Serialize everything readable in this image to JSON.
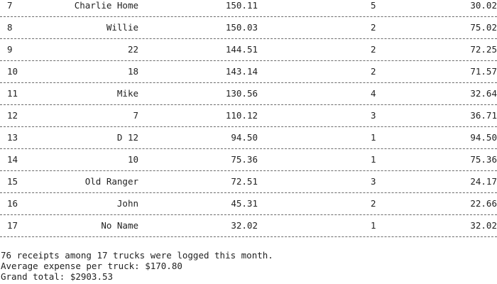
{
  "rows": [
    {
      "num": "7",
      "name": "Charlie Home",
      "total": "150.11",
      "receipts": "5",
      "average": "30.02"
    },
    {
      "num": "8",
      "name": "Willie",
      "total": "150.03",
      "receipts": "2",
      "average": "75.02"
    },
    {
      "num": "9",
      "name": "22",
      "total": "144.51",
      "receipts": "2",
      "average": "72.25"
    },
    {
      "num": "10",
      "name": "18",
      "total": "143.14",
      "receipts": "2",
      "average": "71.57"
    },
    {
      "num": "11",
      "name": "Mike",
      "total": "130.56",
      "receipts": "4",
      "average": "32.64"
    },
    {
      "num": "12",
      "name": "7",
      "total": "110.12",
      "receipts": "3",
      "average": "36.71"
    },
    {
      "num": "13",
      "name": "D 12",
      "total": "94.50",
      "receipts": "1",
      "average": "94.50"
    },
    {
      "num": "14",
      "name": "10",
      "total": "75.36",
      "receipts": "1",
      "average": "75.36"
    },
    {
      "num": "15",
      "name": "Old Ranger",
      "total": "72.51",
      "receipts": "3",
      "average": "24.17"
    },
    {
      "num": "16",
      "name": "John",
      "total": "45.31",
      "receipts": "2",
      "average": "22.66"
    },
    {
      "num": "17",
      "name": "No Name",
      "total": "32.02",
      "receipts": "1",
      "average": "32.02"
    }
  ],
  "summary": {
    "line1": "76 receipts among 17 trucks were logged this month.",
    "line2": "Average expense per truck: $170.80",
    "line3": "Grand total: $2903.53"
  }
}
